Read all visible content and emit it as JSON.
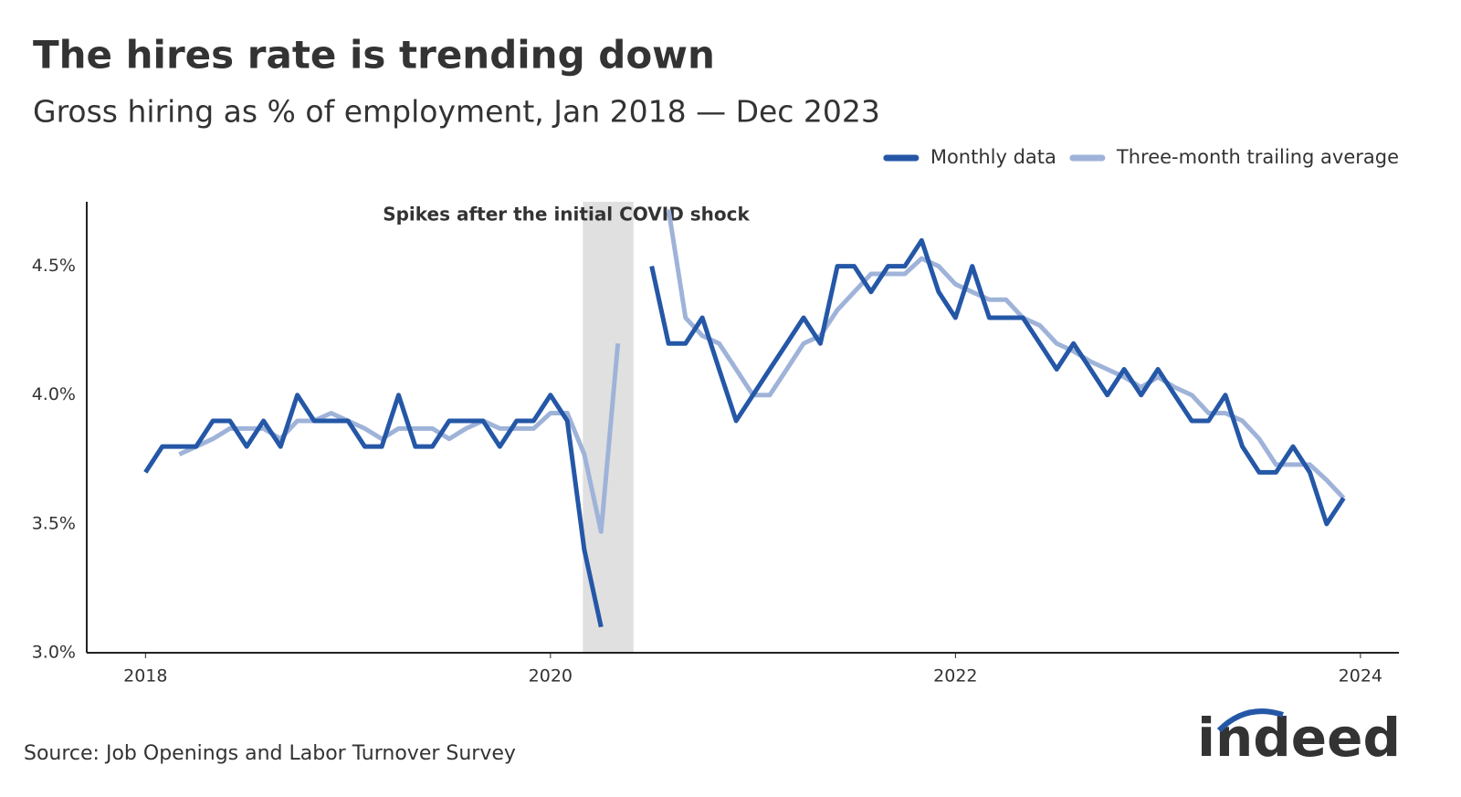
{
  "chart_data": {
    "type": "line",
    "title": "The hires rate is trending down",
    "subtitle": "Gross hiring as % of employment, Jan 2018 — Dec 2023",
    "annotation": "Spikes after the initial COVID shock",
    "shade": [
      2020.16,
      2020.41
    ],
    "source": "Source: Job Openings and Labor Turnover Survey",
    "logo": "indeed",
    "x": [
      2018,
      2018.083,
      2018.167,
      2018.25,
      2018.333,
      2018.417,
      2018.5,
      2018.583,
      2018.667,
      2018.75,
      2018.833,
      2018.917,
      2019,
      2019.083,
      2019.167,
      2019.25,
      2019.333,
      2019.417,
      2019.5,
      2019.583,
      2019.667,
      2019.75,
      2019.833,
      2019.917,
      2020,
      2020.083,
      2020.167,
      2020.25,
      2020.333,
      2020.417,
      2020.5,
      2020.583,
      2020.667,
      2020.75,
      2020.833,
      2020.917,
      2021,
      2021.083,
      2021.167,
      2021.25,
      2021.333,
      2021.417,
      2021.5,
      2021.583,
      2021.667,
      2021.75,
      2021.833,
      2021.917,
      2022,
      2022.083,
      2022.167,
      2022.25,
      2022.333,
      2022.417,
      2022.5,
      2022.583,
      2022.667,
      2022.75,
      2022.833,
      2022.917,
      2023,
      2023.083,
      2023.167,
      2023.25,
      2023.333,
      2023.417,
      2023.5,
      2023.583,
      2023.667,
      2023.75,
      2023.833,
      2023.917
    ],
    "series": [
      {
        "name": "Monthly data",
        "color": "#2557a7",
        "values": [
          3.7,
          3.8,
          3.8,
          3.8,
          3.9,
          3.9,
          3.8,
          3.9,
          3.8,
          4.0,
          3.9,
          3.9,
          3.9,
          3.8,
          3.8,
          4.0,
          3.8,
          3.8,
          3.9,
          3.9,
          3.9,
          3.8,
          3.9,
          3.9,
          4.0,
          3.9,
          3.4,
          3.1,
          null,
          null,
          4.5,
          4.2,
          4.2,
          4.3,
          4.1,
          3.9,
          4.0,
          4.1,
          4.2,
          4.3,
          4.2,
          4.5,
          4.5,
          4.4,
          4.5,
          4.5,
          4.6,
          4.4,
          4.3,
          4.5,
          4.3,
          4.3,
          4.3,
          4.2,
          4.1,
          4.2,
          4.1,
          4.0,
          4.1,
          4.0,
          4.1,
          4.0,
          3.9,
          3.9,
          4.0,
          3.8,
          3.7,
          3.7,
          3.8,
          3.7,
          3.5,
          3.6
        ]
      },
      {
        "name": "Three-month trailing average",
        "color": "#9fb3d9",
        "values": [
          null,
          null,
          3.77,
          3.8,
          3.83,
          3.87,
          3.87,
          3.87,
          3.83,
          3.9,
          3.9,
          3.93,
          3.9,
          3.87,
          3.83,
          3.87,
          3.87,
          3.87,
          3.83,
          3.87,
          3.9,
          3.87,
          3.87,
          3.87,
          3.93,
          3.93,
          3.77,
          3.47,
          4.2,
          null,
          null,
          4.72,
          4.3,
          4.23,
          4.2,
          4.1,
          4.0,
          4.0,
          4.1,
          4.2,
          4.23,
          4.33,
          4.4,
          4.47,
          4.47,
          4.47,
          4.53,
          4.5,
          4.43,
          4.4,
          4.37,
          4.37,
          4.3,
          4.27,
          4.2,
          4.17,
          4.13,
          4.1,
          4.07,
          4.03,
          4.07,
          4.03,
          4.0,
          3.93,
          3.93,
          3.9,
          3.83,
          3.73,
          3.73,
          3.73,
          3.67,
          3.6
        ]
      }
    ],
    "xlim": [
      2017.71,
      2024.19
    ],
    "xticks": [
      2018,
      2020,
      2022,
      2024
    ],
    "ylim": [
      3.0,
      4.75
    ],
    "yticks": [
      {
        "value": 3.0,
        "label": "3.0%"
      },
      {
        "value": 3.5,
        "label": "3.5%"
      },
      {
        "value": 4.0,
        "label": "4.0%"
      },
      {
        "value": 4.5,
        "label": "4.5%"
      }
    ],
    "grid": false,
    "legend": "top-right"
  }
}
